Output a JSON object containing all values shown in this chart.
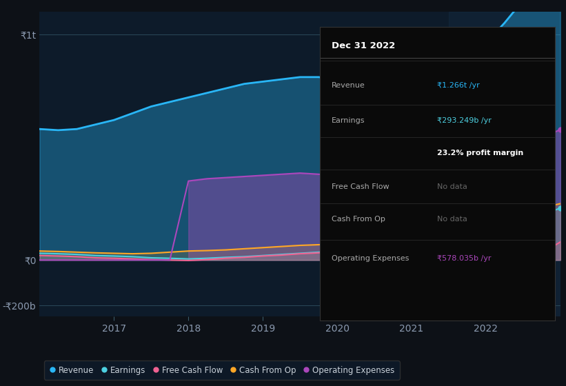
{
  "bg_color": "#0d1117",
  "plot_bg_color": "#0d1b2a",
  "years": [
    2016.0,
    2016.25,
    2016.5,
    2016.75,
    2017.0,
    2017.25,
    2017.5,
    2017.75,
    2018.0,
    2018.25,
    2018.5,
    2018.75,
    2019.0,
    2019.25,
    2019.5,
    2019.75,
    2020.0,
    2020.25,
    2020.5,
    2020.75,
    2021.0,
    2021.25,
    2021.5,
    2021.75,
    2022.0,
    2022.25,
    2022.5,
    2022.75,
    2023.0
  ],
  "revenue": [
    580,
    575,
    580,
    600,
    620,
    650,
    680,
    700,
    720,
    740,
    760,
    780,
    790,
    800,
    810,
    810,
    800,
    790,
    780,
    780,
    790,
    800,
    820,
    880,
    960,
    1050,
    1150,
    1250,
    1266
  ],
  "earnings": [
    30,
    28,
    25,
    20,
    18,
    15,
    10,
    8,
    5,
    8,
    12,
    15,
    20,
    25,
    30,
    35,
    40,
    35,
    25,
    15,
    5,
    8,
    30,
    50,
    80,
    120,
    160,
    200,
    230
  ],
  "free_cash_flow": [
    20,
    18,
    15,
    10,
    8,
    5,
    2,
    0,
    -2,
    2,
    8,
    12,
    18,
    22,
    28,
    32,
    35,
    30,
    20,
    10,
    -5,
    -20,
    -50,
    -100,
    -150,
    -80,
    -20,
    30,
    80
  ],
  "cash_from_op": [
    40,
    38,
    35,
    32,
    30,
    28,
    30,
    35,
    40,
    42,
    45,
    50,
    55,
    60,
    65,
    68,
    70,
    65,
    55,
    45,
    35,
    38,
    45,
    80,
    120,
    160,
    200,
    230,
    250
  ],
  "op_expenses": [
    0,
    0,
    0,
    0,
    0,
    0,
    0,
    0,
    350,
    360,
    365,
    370,
    375,
    380,
    385,
    380,
    375,
    375,
    370,
    365,
    360,
    320,
    340,
    380,
    430,
    480,
    510,
    540,
    578
  ],
  "ylim": [
    -250,
    1100
  ],
  "yticks": [
    -200,
    0,
    1000
  ],
  "ytick_labels": [
    "-₹200b",
    "₹0",
    "₹1t"
  ],
  "xticks": [
    2017,
    2018,
    2019,
    2020,
    2021,
    2022
  ],
  "revenue_color": "#29b6f6",
  "earnings_color": "#4dd0e1",
  "free_cash_flow_color": "#f06292",
  "cash_from_op_color": "#ffa726",
  "op_expenses_color": "#ab47bc",
  "highlight_start": 2021.5,
  "tooltip_title": "Dec 31 2022",
  "tooltip_bg": "#0a0a0a",
  "tooltip_border": "#333333"
}
